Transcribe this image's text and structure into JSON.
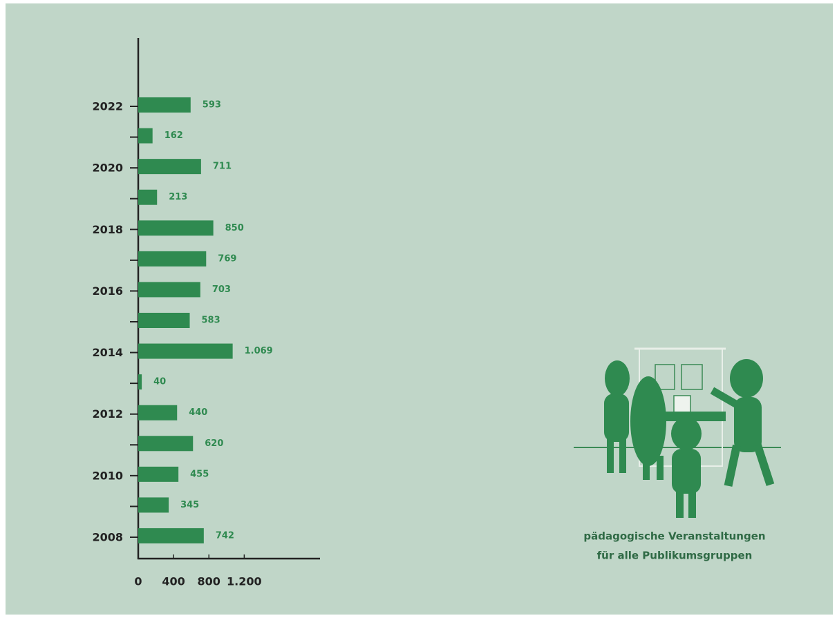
{
  "chart_data": {
    "type": "hbar",
    "categories": [
      "2022",
      null,
      "2020",
      null,
      "2018",
      null,
      "2016",
      null,
      "2014",
      null,
      "2012",
      null,
      "2010",
      null,
      "2008"
    ],
    "values": [
      593,
      162,
      711,
      213,
      850,
      769,
      703,
      583,
      1069,
      40,
      440,
      620,
      455,
      345,
      742
    ],
    "value_labels": [
      "593",
      "162",
      "711",
      "213",
      "850",
      "769",
      "703",
      "583",
      "1.069",
      "40",
      "440",
      "620",
      "455",
      "345",
      "742"
    ],
    "color": "#2f8a50",
    "xlim": [
      0,
      2050
    ],
    "xticks": [
      0,
      400,
      800,
      {
        "value": 1200,
        "label": "1.200"
      }
    ],
    "annotation": [
      "pädagogische Veranstaltungen",
      "für alle Publikumsgruppen"
    ]
  }
}
